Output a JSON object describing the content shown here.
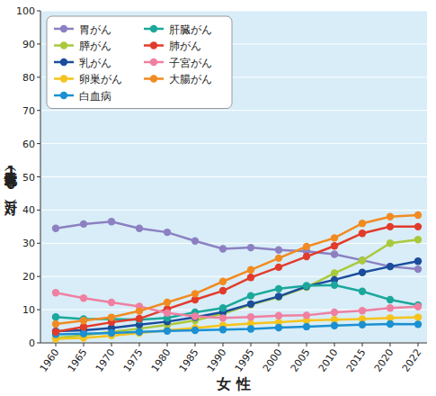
{
  "chart_data": {
    "type": "line",
    "x_label": "女 性",
    "y_label": "死亡率（女性人口10万対）",
    "categories": [
      "1960",
      "1965",
      "1970",
      "1975",
      "1980",
      "1985",
      "1990",
      "1995",
      "2000",
      "2005",
      "2010",
      "2015",
      "2020",
      "2022"
    ],
    "ylim": [
      0,
      100
    ],
    "yticks": [
      0,
      10,
      20,
      30,
      40,
      50,
      60,
      70,
      80,
      90,
      100
    ],
    "grid": true,
    "legend": "upper-left",
    "marker": "circle",
    "series": [
      {
        "name": "胃がん",
        "color": "#8c80c2",
        "values": [
          34.5,
          35.8,
          36.5,
          34.5,
          33.3,
          30.7,
          28.3,
          28.7,
          28.0,
          27.6,
          26.7,
          24.9,
          23.0,
          22.2
        ]
      },
      {
        "name": "膵がん",
        "color": "#a9c93c",
        "values": [
          1.5,
          2.3,
          3.3,
          4.3,
          5.4,
          6.8,
          8.8,
          11.5,
          13.8,
          16.8,
          21.0,
          24.8,
          30.0,
          31.1
        ]
      },
      {
        "name": "乳がん",
        "color": "#1b4d9c",
        "values": [
          3.5,
          3.8,
          4.5,
          5.5,
          6.4,
          7.7,
          9.3,
          11.7,
          14.0,
          17.0,
          19.0,
          21.2,
          23.0,
          24.6
        ]
      },
      {
        "name": "卵巣がん",
        "color": "#f5c31c",
        "values": [
          1.2,
          1.5,
          2.2,
          3.0,
          3.8,
          4.5,
          5.3,
          5.8,
          6.2,
          6.8,
          7.0,
          7.2,
          7.5,
          7.7
        ]
      },
      {
        "name": "白血病",
        "color": "#1b90d2",
        "values": [
          2.6,
          2.8,
          3.0,
          3.3,
          3.6,
          3.8,
          4.0,
          4.2,
          4.6,
          4.9,
          5.2,
          5.5,
          5.7,
          5.6
        ]
      },
      {
        "name": "肝臓がん",
        "color": "#1ba89b",
        "values": [
          7.8,
          7.2,
          7.2,
          7.0,
          7.5,
          9.2,
          10.5,
          14.2,
          16.3,
          17.2,
          17.4,
          15.5,
          13.0,
          11.4
        ]
      },
      {
        "name": "肺がん",
        "color": "#e23b2b",
        "values": [
          3.3,
          4.8,
          6.2,
          7.3,
          10.2,
          13.0,
          15.7,
          19.7,
          22.8,
          26.0,
          29.2,
          33.0,
          35.0,
          35.0
        ]
      },
      {
        "name": "子宮がん",
        "color": "#ef80a1",
        "values": [
          15.1,
          13.5,
          12.2,
          11.0,
          9.0,
          8.0,
          7.5,
          7.8,
          8.2,
          8.3,
          9.2,
          9.7,
          10.5,
          10.9
        ]
      },
      {
        "name": "大腸がん",
        "color": "#f18b21",
        "values": [
          5.7,
          6.7,
          7.7,
          9.6,
          12.2,
          14.8,
          18.5,
          22.0,
          25.5,
          29.0,
          31.6,
          36.0,
          38.0,
          38.5
        ]
      }
    ]
  }
}
